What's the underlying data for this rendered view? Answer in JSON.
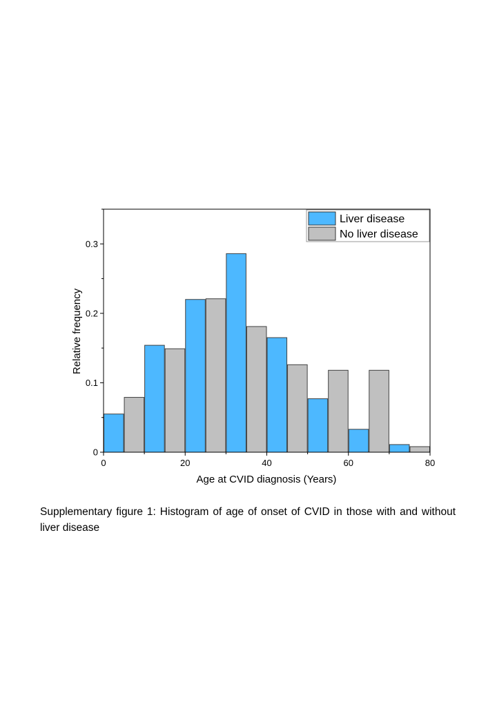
{
  "chart_data": {
    "type": "bar",
    "xlabel": "Age at CVID diagnosis (Years)",
    "ylabel": "Relative frequency",
    "xlim": [
      0,
      80
    ],
    "ylim": [
      0,
      0.35
    ],
    "xticks": [
      0,
      20,
      40,
      60,
      80
    ],
    "xtick_labels": [
      "0",
      "20",
      "40",
      "60",
      "80"
    ],
    "yticks": [
      0,
      0.1,
      0.2,
      0.3
    ],
    "ytick_labels": [
      "0",
      "0.1",
      "0.2",
      "0.3"
    ],
    "bin_width": 10,
    "bins": [
      [
        0,
        10
      ],
      [
        10,
        20
      ],
      [
        20,
        30
      ],
      [
        30,
        40
      ],
      [
        40,
        50
      ],
      [
        50,
        60
      ],
      [
        60,
        70
      ],
      [
        70,
        80
      ]
    ],
    "legend_position": "top-right",
    "grid": false,
    "series": [
      {
        "name": "Liver disease",
        "color": "#4db8ff",
        "values": [
          0.055,
          0.154,
          0.22,
          0.286,
          0.165,
          0.077,
          0.033,
          0.011
        ]
      },
      {
        "name": "No liver disease",
        "color": "#c0c0c0",
        "values": [
          0.079,
          0.149,
          0.221,
          0.181,
          0.126,
          0.118,
          0.118,
          0.008
        ]
      }
    ]
  },
  "caption": "Supplementary figure 1: Histogram of age of onset of CVID in those with and without liver disease"
}
